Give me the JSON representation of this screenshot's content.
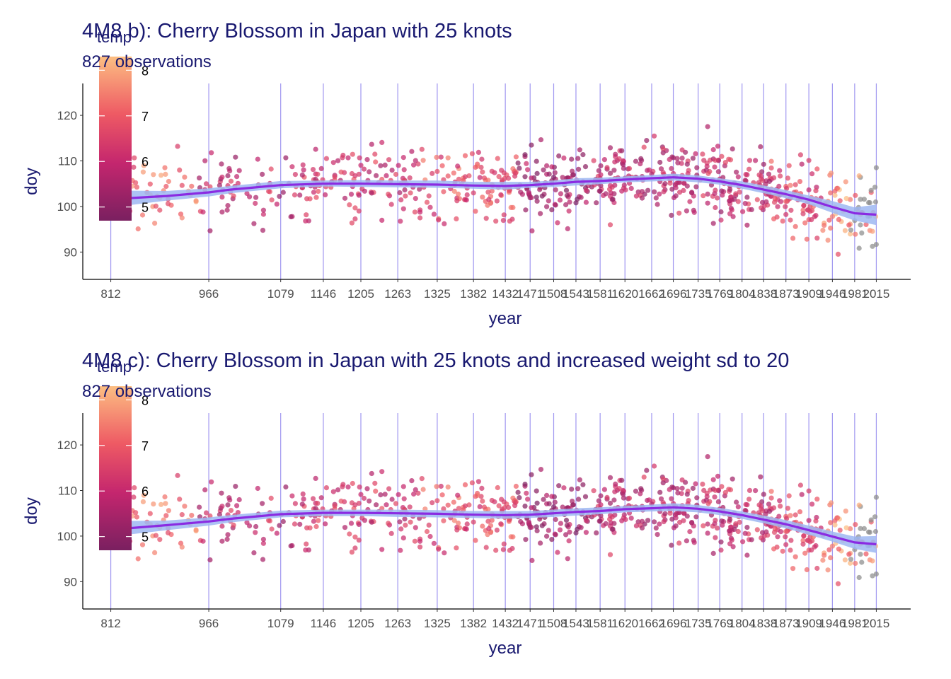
{
  "chart_data": [
    {
      "type": "scatter",
      "title": "4M8 b): Cherry Blossom in Japan with 25 knots",
      "subtitle": "827 observations",
      "xlabel": "year",
      "ylabel": "doy",
      "xlim": [
        768,
        2069
      ],
      "ylim": [
        84,
        127
      ],
      "x_ticks": [
        812,
        966,
        1079,
        1146,
        1205,
        1263,
        1325,
        1382,
        1432,
        1471,
        1508,
        1543,
        1581,
        1620,
        1662,
        1696,
        1735,
        1769,
        1804,
        1838,
        1873,
        1909,
        1946,
        1981,
        2015
      ],
      "y_ticks": [
        90,
        100,
        110,
        120
      ],
      "knots": [
        812,
        966,
        1079,
        1146,
        1205,
        1263,
        1325,
        1382,
        1432,
        1471,
        1508,
        1543,
        1581,
        1620,
        1662,
        1696,
        1735,
        1769,
        1804,
        1838,
        1873,
        1909,
        1946,
        1981,
        2015
      ],
      "legend": {
        "title": "temp",
        "labels": [
          5,
          6,
          7,
          8
        ],
        "range": [
          4.7,
          8.3
        ],
        "placement": "top-left"
      },
      "n_points": 827,
      "series": [
        {
          "type": "ribbon",
          "x": [
            812,
            900,
            966,
            1000,
            1079,
            1146,
            1205,
            1263,
            1325,
            1382,
            1432,
            1471,
            1508,
            1543,
            1581,
            1620,
            1662,
            1696,
            1735,
            1769,
            1804,
            1838,
            1873,
            1909,
            1946,
            1981,
            2015
          ],
          "y_low": [
            99.8,
            101.3,
            102.2,
            102.9,
            104.0,
            104.4,
            104.3,
            104.2,
            104.1,
            103.9,
            103.7,
            104.1,
            104.3,
            104.6,
            104.9,
            105.3,
            105.5,
            105.7,
            105.3,
            104.8,
            103.9,
            102.9,
            101.8,
            100.5,
            98.6,
            96.9,
            95.9
          ],
          "y_high": [
            103.5,
            103.4,
            104.0,
            104.5,
            105.6,
            105.7,
            105.8,
            105.7,
            105.7,
            105.4,
            105.4,
            105.4,
            105.7,
            106.2,
            106.3,
            106.6,
            106.9,
            107.2,
            106.8,
            106.2,
            105.5,
            104.6,
            103.6,
            102.4,
            101.2,
            99.8,
            100.4
          ]
        },
        {
          "type": "line",
          "x": [
            812,
            900,
            966,
            1000,
            1079,
            1146,
            1205,
            1263,
            1325,
            1382,
            1432,
            1471,
            1508,
            1543,
            1581,
            1620,
            1662,
            1696,
            1735,
            1769,
            1804,
            1838,
            1873,
            1909,
            1946,
            1981,
            2015
          ],
          "y": [
            101.6,
            102.3,
            103.1,
            103.7,
            104.7,
            105.0,
            105.0,
            104.9,
            104.8,
            104.6,
            104.5,
            104.7,
            105.0,
            105.4,
            105.6,
            105.9,
            106.2,
            106.4,
            106.1,
            105.5,
            104.7,
            103.7,
            102.7,
            101.5,
            99.9,
            98.5,
            98.2
          ]
        }
      ]
    },
    {
      "type": "scatter",
      "title": "4M8 c): Cherry Blossom in Japan with 25 knots and increased weight sd to 20",
      "subtitle": "827 observations",
      "xlabel": "year",
      "ylabel": "doy",
      "xlim": [
        768,
        2069
      ],
      "ylim": [
        84,
        127
      ],
      "x_ticks": [
        812,
        966,
        1079,
        1146,
        1205,
        1263,
        1325,
        1382,
        1432,
        1471,
        1508,
        1543,
        1581,
        1620,
        1662,
        1696,
        1735,
        1769,
        1804,
        1838,
        1873,
        1909,
        1946,
        1981,
        2015
      ],
      "y_ticks": [
        90,
        100,
        110,
        120
      ],
      "knots": [
        812,
        966,
        1079,
        1146,
        1205,
        1263,
        1325,
        1382,
        1432,
        1471,
        1508,
        1543,
        1581,
        1620,
        1662,
        1696,
        1735,
        1769,
        1804,
        1838,
        1873,
        1909,
        1946,
        1981,
        2015
      ],
      "legend": {
        "title": "temp",
        "labels": [
          5,
          6,
          7,
          8
        ],
        "range": [
          4.7,
          8.3
        ],
        "placement": "top-left"
      },
      "n_points": 827,
      "series": [
        {
          "type": "ribbon",
          "x": [
            812,
            900,
            966,
            1000,
            1079,
            1146,
            1205,
            1263,
            1325,
            1382,
            1432,
            1471,
            1508,
            1543,
            1581,
            1620,
            1662,
            1696,
            1735,
            1769,
            1804,
            1838,
            1873,
            1909,
            1946,
            1981,
            2015
          ],
          "y_low": [
            99.9,
            101.3,
            102.3,
            103.0,
            104.1,
            104.4,
            104.4,
            104.2,
            104.1,
            104.0,
            103.8,
            104.0,
            104.2,
            104.5,
            104.8,
            105.2,
            105.4,
            105.5,
            105.2,
            104.6,
            103.8,
            102.8,
            101.7,
            100.3,
            98.8,
            97.2,
            96.3
          ],
          "y_high": [
            103.3,
            103.4,
            104.1,
            104.6,
            105.6,
            105.8,
            105.8,
            105.8,
            105.7,
            105.5,
            105.5,
            105.5,
            105.8,
            106.1,
            106.3,
            106.6,
            106.9,
            107.2,
            106.8,
            106.2,
            105.4,
            104.5,
            103.5,
            102.3,
            101.0,
            99.9,
            100.0
          ]
        },
        {
          "type": "line",
          "x": [
            812,
            900,
            966,
            1000,
            1079,
            1146,
            1205,
            1263,
            1325,
            1382,
            1432,
            1471,
            1508,
            1543,
            1581,
            1620,
            1662,
            1696,
            1735,
            1769,
            1804,
            1838,
            1873,
            1909,
            1946,
            1981,
            2015
          ],
          "y": [
            101.4,
            102.4,
            103.2,
            103.8,
            104.8,
            105.1,
            105.1,
            105.0,
            104.9,
            104.7,
            104.6,
            104.7,
            105.0,
            105.3,
            105.5,
            105.9,
            106.1,
            106.3,
            106.0,
            105.4,
            104.6,
            103.6,
            102.6,
            101.3,
            99.9,
            98.6,
            98.2
          ]
        }
      ]
    }
  ]
}
